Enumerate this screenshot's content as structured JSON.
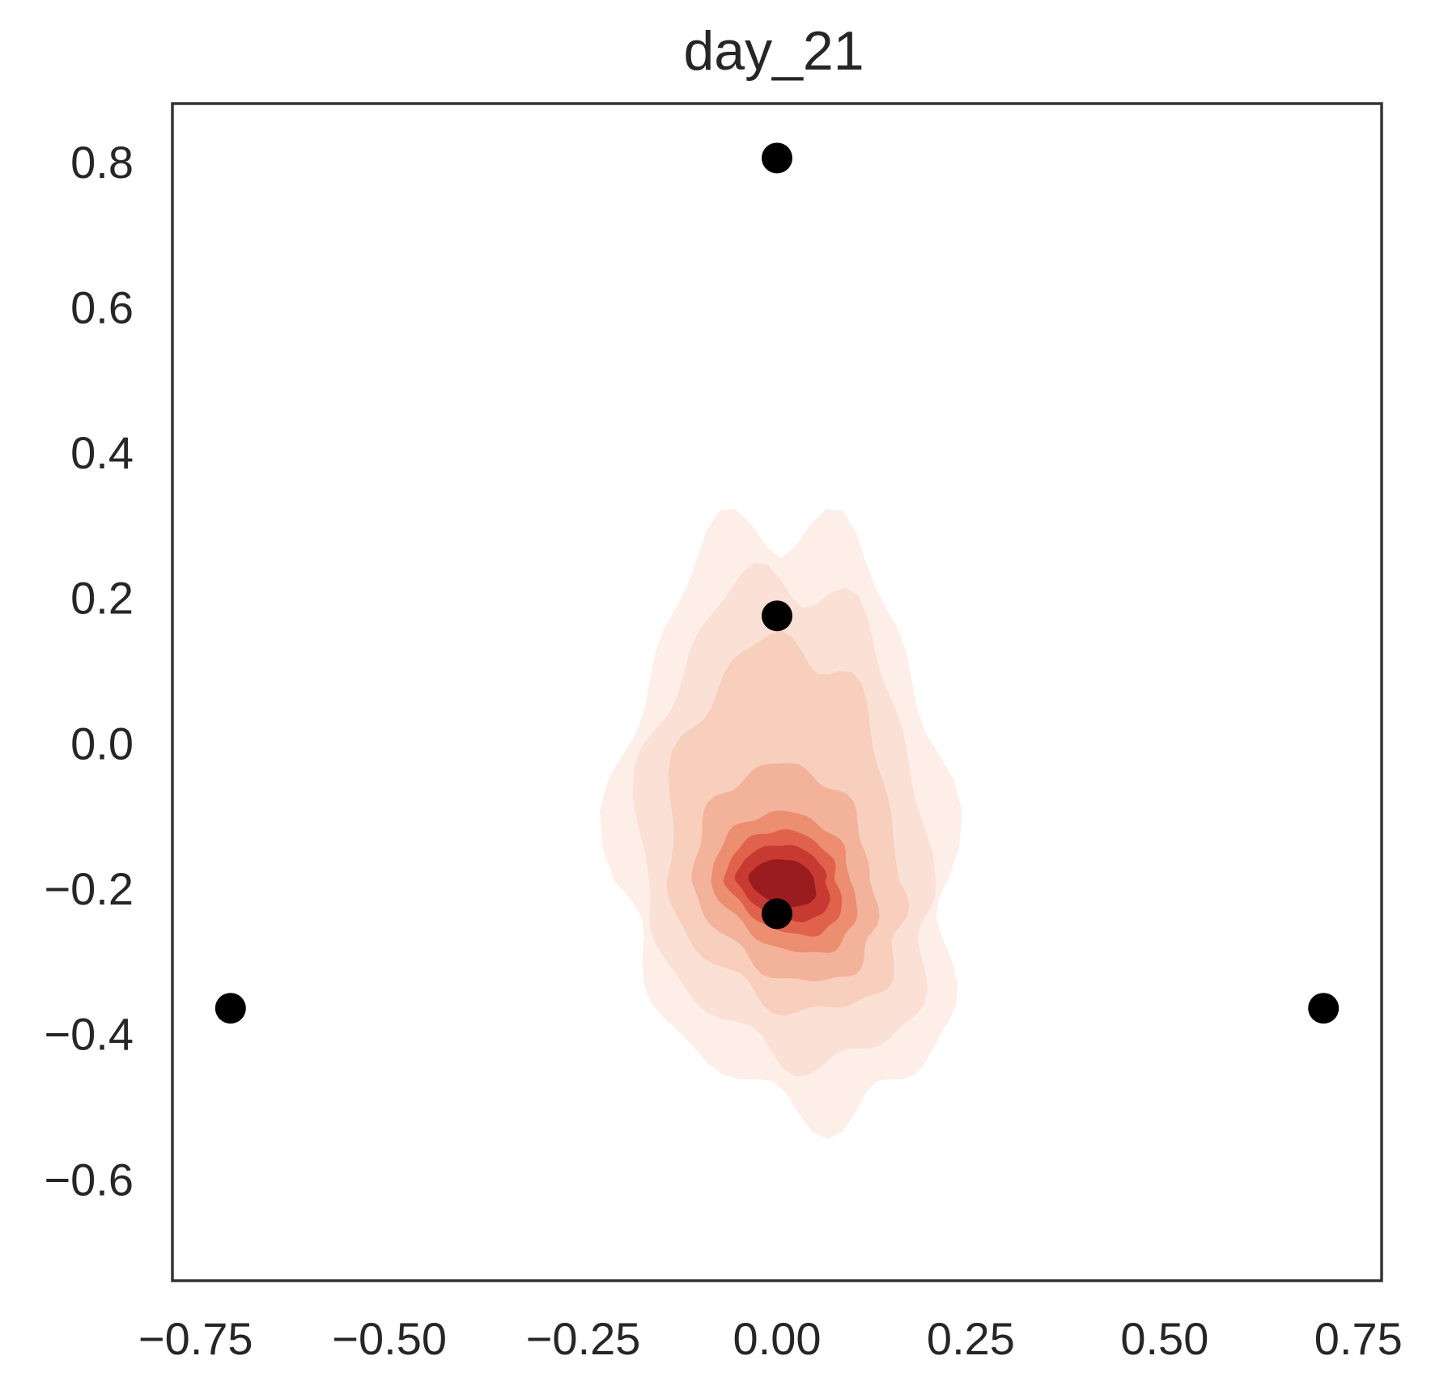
{
  "chart_data": {
    "type": "scatter",
    "title": "day_21",
    "xlabel": "",
    "ylabel": "",
    "xlim": [
      -0.78,
      0.78
    ],
    "ylim": [
      -0.74,
      0.88
    ],
    "grid": false,
    "x_ticks": [
      -0.75,
      -0.5,
      -0.25,
      0.0,
      0.25,
      0.5,
      0.75
    ],
    "x_tick_labels": [
      "−0.75",
      "−0.50",
      "−0.25",
      "0.00",
      "0.25",
      "0.50",
      "0.75"
    ],
    "y_ticks": [
      0.8,
      0.6,
      0.4,
      0.2,
      0.0,
      -0.2,
      -0.4,
      -0.6
    ],
    "y_tick_labels": [
      "0.8",
      "0.6",
      "0.4",
      "0.2",
      "0.0",
      "−0.2",
      "−0.4",
      "−0.6"
    ],
    "points": [
      {
        "x": 0.0,
        "y": 0.805
      },
      {
        "x": 0.0,
        "y": 0.175
      },
      {
        "x": 0.0,
        "y": -0.235
      },
      {
        "x": -0.705,
        "y": -0.365
      },
      {
        "x": 0.705,
        "y": -0.365
      }
    ],
    "point_color": "#000000",
    "density": {
      "type": "kde-contour",
      "colormap": "Reds",
      "level_colors": [
        "#fdeee8",
        "#fbe0d5",
        "#f8cfbc",
        "#f3b29a",
        "#ec8e70",
        "#e0624b",
        "#c63a32",
        "#9b1c1e"
      ],
      "peak": {
        "x": 0.01,
        "y": -0.19
      }
    }
  },
  "colors": {
    "axis": "#333333",
    "text": "#262626",
    "background": "#ffffff"
  }
}
